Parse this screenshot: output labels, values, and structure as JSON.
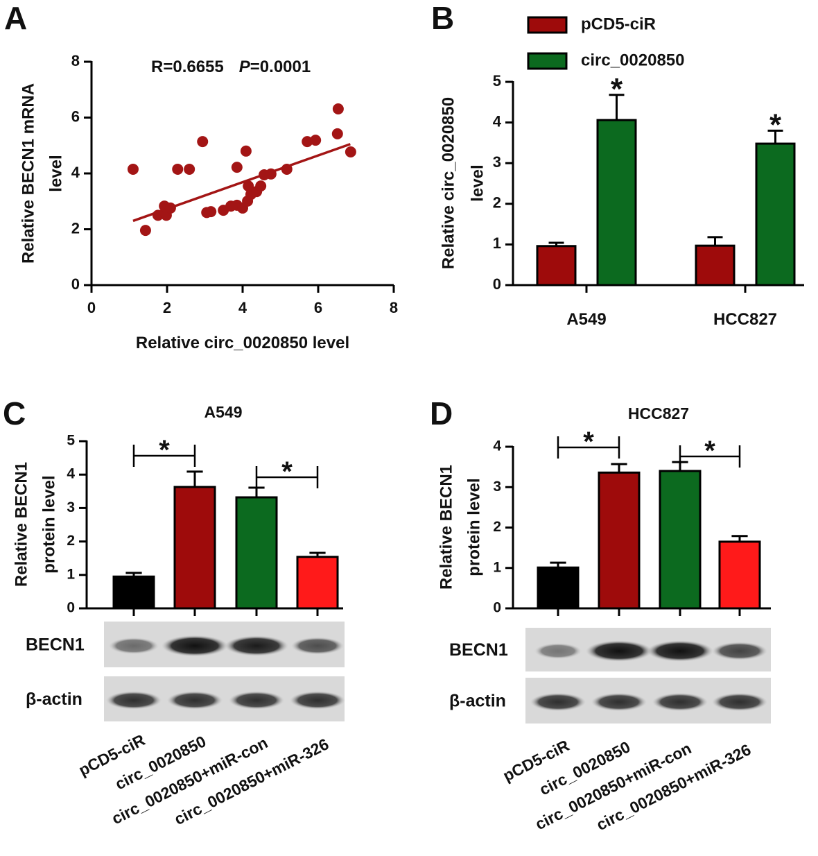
{
  "chart_data": [
    {
      "type": "scatter",
      "panel_label": "A",
      "annotation": [
        "R=0.6655",
        "P",
        "=0.0001"
      ],
      "xlabel": "Relative circ_0020850 level",
      "ylabel": [
        "Relative BECN1 mRNA",
        "level"
      ],
      "color": "#a31515",
      "x": [
        1.1,
        1.43,
        1.76,
        1.93,
        1.98,
        2.09,
        2.28,
        2.59,
        2.94,
        3.05,
        3.16,
        3.49,
        3.69,
        3.85,
        3.85,
        4.0,
        4.09,
        4.13,
        4.15,
        4.22,
        4.37,
        4.48,
        4.57,
        4.75,
        5.17,
        5.71,
        5.93,
        6.51,
        6.53,
        6.86
      ],
      "values": [
        4.15,
        1.96,
        2.5,
        2.83,
        2.5,
        2.76,
        4.15,
        4.15,
        5.14,
        2.6,
        2.63,
        2.68,
        2.83,
        2.86,
        4.22,
        2.76,
        4.8,
        3.01,
        3.55,
        3.25,
        3.35,
        3.55,
        3.95,
        3.98,
        4.15,
        5.14,
        5.19,
        5.42,
        6.31,
        4.77
      ],
      "fit_line": {
        "x": [
          1.1,
          6.85
        ],
        "y": [
          2.3,
          5.05
        ]
      },
      "xlim": [
        0,
        8
      ],
      "xticks": [
        0,
        2,
        4,
        6,
        8
      ],
      "ylim": [
        0,
        8
      ],
      "yticks": [
        0,
        2,
        4,
        6,
        8
      ]
    },
    {
      "type": "bar",
      "panel_label": "B",
      "ylabel": [
        "Relative circ_0020850",
        "level"
      ],
      "categories": [
        "A549",
        "HCC827"
      ],
      "series": [
        {
          "name": "pCD5-ciR",
          "color": "#9e0b0b",
          "values": [
            0.96,
            0.97
          ],
          "errors": [
            0.08,
            0.21
          ]
        },
        {
          "name": "circ_0020850",
          "color": "#0c6a1f",
          "values": [
            4.06,
            3.48
          ],
          "errors": [
            0.62,
            0.32
          ]
        }
      ],
      "significance_labels": [
        "*",
        "*"
      ],
      "ylim": [
        0,
        5
      ],
      "yticks": [
        0,
        1,
        2,
        3,
        4,
        5
      ]
    },
    {
      "type": "bar",
      "panel_label": "C",
      "title": "A549",
      "ylabel": [
        "Relative BECN1",
        "protein level"
      ],
      "categories": [
        "pCD5-ciR",
        "circ_0020850",
        "circ_0020850+miR-con",
        "circ_0020850+miR-326"
      ],
      "values": [
        0.95,
        3.63,
        3.32,
        1.54
      ],
      "errors": [
        0.11,
        0.46,
        0.29,
        0.12
      ],
      "colors": [
        "#000000",
        "#9e0b0b",
        "#0c6a1f",
        "#ff1a1a"
      ],
      "significance_labels": [
        "*",
        "*"
      ],
      "blot_labels": [
        "BECN1",
        "β-actin"
      ],
      "ylim": [
        0,
        5
      ],
      "yticks": [
        0,
        1,
        2,
        3,
        4,
        5
      ]
    },
    {
      "type": "bar",
      "panel_label": "D",
      "title": "HCC827",
      "ylabel": [
        "Relative BECN1",
        "protein level"
      ],
      "categories": [
        "pCD5-ciR",
        "circ_0020850",
        "circ_0020850+miR-con",
        "circ_0020850+miR-326"
      ],
      "values": [
        1.01,
        3.36,
        3.4,
        1.65
      ],
      "errors": [
        0.12,
        0.21,
        0.22,
        0.14
      ],
      "colors": [
        "#000000",
        "#9e0b0b",
        "#0c6a1f",
        "#ff1a1a"
      ],
      "significance_labels": [
        "*",
        "*"
      ],
      "blot_labels": [
        "BECN1",
        "β-actin"
      ],
      "ylim": [
        0,
        4
      ],
      "yticks": [
        0,
        1,
        2,
        3,
        4
      ]
    }
  ]
}
